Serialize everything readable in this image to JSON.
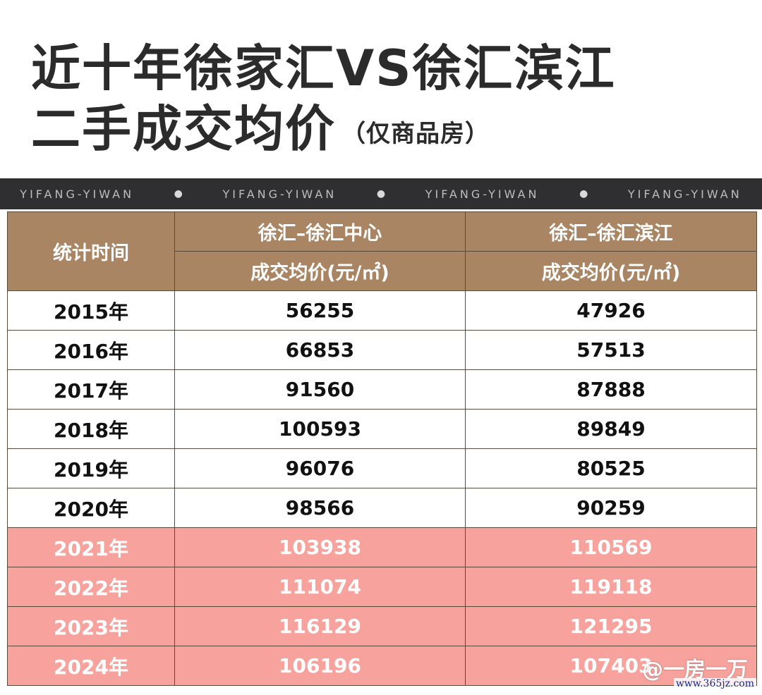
{
  "title_line1": "近十年徐家汇VS徐汇滨江",
  "title_line2": "二手成交均价",
  "title_sub": "（仅商品房）",
  "banner": {
    "text": "YIFANG-YIWAN",
    "dot": "●"
  },
  "table": {
    "header_time": "统计时间",
    "col1_name": "徐汇–徐汇中心",
    "col1_unit": "成交均价(元/㎡)",
    "col2_name": "徐汇–徐汇滨江",
    "col2_unit": "成交均价(元/㎡)",
    "rows": [
      {
        "year": "2015年",
        "a": "56255",
        "b": "47926"
      },
      {
        "year": "2016年",
        "a": "66853",
        "b": "57513"
      },
      {
        "year": "2017年",
        "a": "91560",
        "b": "87888"
      },
      {
        "year": "2018年",
        "a": "100593",
        "b": "89849"
      },
      {
        "year": "2019年",
        "a": "96076",
        "b": "80525"
      },
      {
        "year": "2020年",
        "a": "98566",
        "b": "90259"
      },
      {
        "year": "2021年",
        "a": "103938",
        "b": "110569"
      },
      {
        "year": "2022年",
        "a": "111074",
        "b": "119118"
      },
      {
        "year": "2023年",
        "a": "116129",
        "b": "121295"
      },
      {
        "year": "2024年",
        "a": "106196",
        "b": "107403"
      }
    ]
  },
  "watermark": "一房一万",
  "handle": "@一房一万",
  "site": "www.365jz.com",
  "colors": {
    "header_bg": "#a98564",
    "highlight_bg": "#f7a29c",
    "banner_bg": "#2f2f31"
  }
}
